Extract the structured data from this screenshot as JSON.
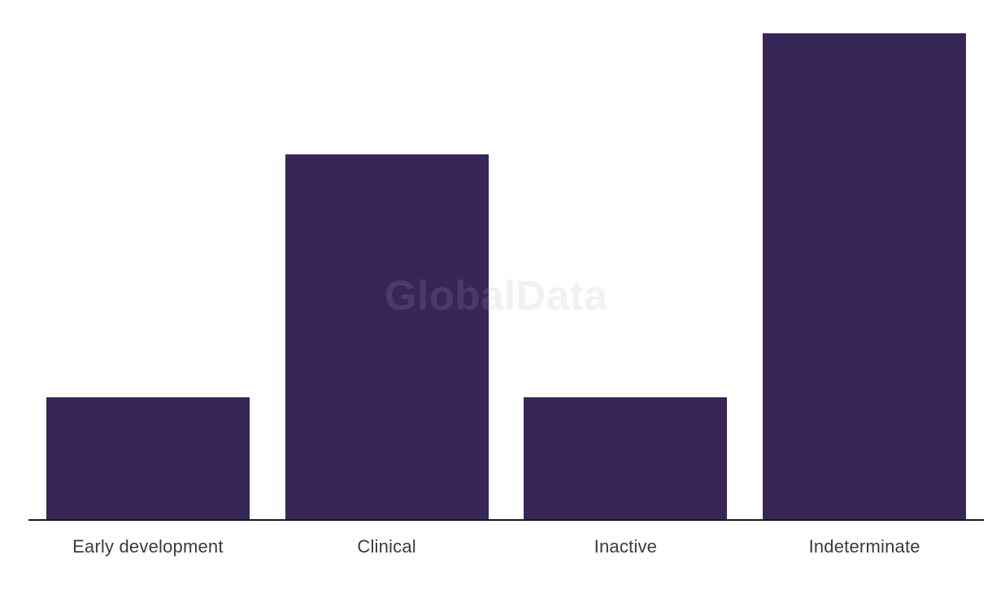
{
  "watermark": {
    "text": "GlobalData"
  },
  "chart_data": {
    "type": "bar",
    "categories": [
      "Early development",
      "Clinical",
      "Inactive",
      "Indeterminate"
    ],
    "values": [
      1,
      3,
      1,
      4
    ],
    "title": "",
    "xlabel": "",
    "ylabel": "",
    "ylim": [
      0,
      4.2
    ],
    "grid": false,
    "legend": false,
    "y_axis_shown": false,
    "value_labels_shown": false,
    "bar_color": "#372658",
    "axis_line_color": "#14162A",
    "category_label_color": "#3A3A3A",
    "background_color": "#FFFFFF"
  }
}
